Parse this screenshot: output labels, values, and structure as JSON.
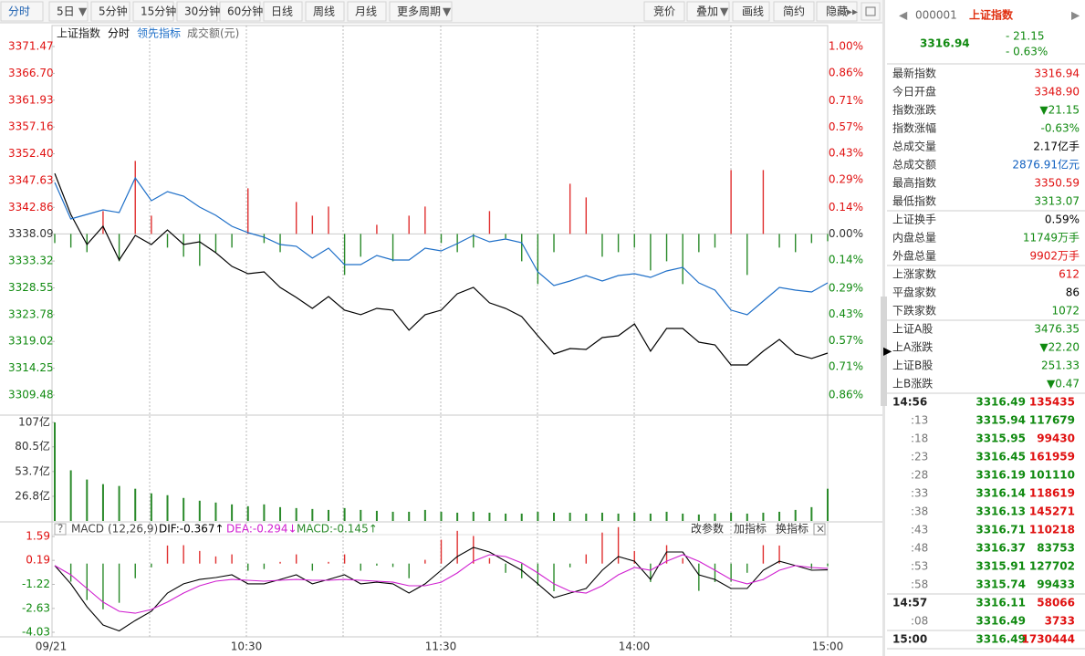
{
  "toolbar": {
    "left": [
      "分时",
      "5日",
      "5分钟",
      "15分钟",
      "30分钟",
      "60分钟",
      "日线",
      "周线",
      "月线",
      "更多周期"
    ],
    "right": [
      "竞价",
      "叠加",
      "画线",
      "简约",
      "隐藏"
    ]
  },
  "time_axis": [
    "09/21",
    "10:30",
    "11:30",
    "14:00",
    "15:00"
  ],
  "chart_data": [
    {
      "type": "line",
      "title": "上证指数",
      "volume_label": "成交额(元)",
      "ylim": [
        3309.48,
        3371.47
      ],
      "yticks": [
        3371.47,
        {
          "value": 3366.7,
          "label": "3366.70"
        },
        3361.93,
        3357.16,
        {
          "value": 3352.4,
          "label": "3352.40"
        },
        3347.63,
        3342.86,
        3338.09,
        3333.32,
        3328.55,
        3323.78,
        3319.02,
        3314.25,
        3309.48
      ],
      "y2lim": [
        -0.86,
        1.0
      ],
      "y2ticks": [
        {
          "value": 1.0,
          "label": "1.00%"
        },
        {
          "value": 0.86,
          "label": "0.86%"
        },
        {
          "value": 0.71,
          "label": "0.71%"
        },
        {
          "value": 0.57,
          "label": "0.57%"
        },
        {
          "value": 0.43,
          "label": "0.43%"
        },
        {
          "value": 0.29,
          "label": "0.29%"
        },
        {
          "value": 0.14,
          "label": "0.14%"
        },
        {
          "value": 0,
          "label": "0.00%"
        },
        {
          "value": -0.14,
          "label": "0.14%"
        },
        {
          "value": -0.29,
          "label": "0.29%"
        },
        {
          "value": -0.43,
          "label": "0.43%"
        },
        {
          "value": -0.57,
          "label": "0.57%"
        },
        {
          "value": -0.71,
          "label": "0.71%"
        },
        {
          "value": -0.86,
          "label": "0.86%"
        }
      ],
      "series": [
        {
          "name": "分时",
          "color": "#000000",
          "values": [
            3348.9,
            3341.61,
            3336.26,
            3339.5,
            3333.5,
            3337.88,
            3336.26,
            3338.86,
            3336.26,
            3336.75,
            3334.8,
            3332.37,
            3331.07,
            3331.39,
            3328.63,
            3326.85,
            3324.9,
            3327.01,
            3324.58,
            3323.77,
            3324.9,
            3324.58,
            3321.01,
            3323.77,
            3324.58,
            3327.5,
            3328.63,
            3325.88,
            3324.9,
            3323.44,
            3320.03,
            3316.79,
            3317.76,
            3317.6,
            3319.71,
            3320.03,
            3322.14,
            3317.28,
            3321.33,
            3321.33,
            3318.9,
            3318.41,
            3314.84,
            3314.84,
            3317.28,
            3319.38,
            3316.79,
            3315.98,
            3316.94
          ]
        },
        {
          "name": "领先指标",
          "color": "#1e6fc8",
          "values": [
            3347.29,
            3340.8,
            3341.61,
            3342.43,
            3341.94,
            3348.1,
            3344.05,
            3345.67,
            3344.86,
            3342.91,
            3341.45,
            3339.5,
            3338.37,
            3337.56,
            3336.26,
            3335.94,
            3333.83,
            3335.61,
            3332.69,
            3332.69,
            3334.31,
            3333.5,
            3333.5,
            3335.61,
            3335.12,
            3336.42,
            3337.88,
            3336.75,
            3337.23,
            3336.58,
            3331.39,
            3328.96,
            3329.77,
            3330.74,
            3329.77,
            3330.74,
            3331.07,
            3330.42,
            3331.55,
            3332.2,
            3329.44,
            3328.15,
            3324.58,
            3323.77,
            3326.2,
            3328.63,
            3328.15,
            3327.82,
            3329.44
          ]
        }
      ],
      "bars": {
        "up_color": "#e03030",
        "down_color": "#2a8a2a",
        "values": [
          -10,
          -15,
          -20,
          25,
          -30,
          80,
          20,
          -15,
          -25,
          -35,
          -20,
          -15,
          50,
          -10,
          -20,
          35,
          20,
          30,
          -45,
          -25,
          10,
          -30,
          20,
          30,
          -10,
          -20,
          -15,
          25,
          -5,
          -30,
          -55,
          -20,
          55,
          40,
          -25,
          -20,
          -15,
          -40,
          -30,
          -55,
          -20,
          -15,
          70,
          -45,
          70,
          -15,
          -20,
          -10,
          -8
        ]
      }
    },
    {
      "type": "bar",
      "color": "#2a8a2a",
      "ylim": [
        0,
        107
      ],
      "yticks": [
        {
          "value": 107,
          "label": "107亿"
        },
        {
          "value": 80.5,
          "label": "80.5亿"
        },
        {
          "value": 53.7,
          "label": "53.7亿"
        },
        {
          "value": 26.8,
          "label": "26.8亿"
        }
      ],
      "values": [
        107,
        55,
        45,
        40,
        38,
        35,
        30,
        28,
        25,
        22,
        20,
        18,
        16,
        18,
        15,
        14,
        13,
        12,
        14,
        12,
        11,
        10,
        10,
        12,
        10,
        9,
        10,
        9,
        8,
        8,
        10,
        9,
        9,
        8,
        9,
        8,
        9,
        8,
        10,
        8,
        7,
        8,
        9,
        8,
        9,
        10,
        12,
        15,
        35
      ]
    },
    {
      "type": "macd",
      "title": "MACD",
      "params": "(12,26,9)",
      "actions": [
        "改参数",
        "加指标",
        "换指标"
      ],
      "ylim": [
        -4.03,
        1.59
      ],
      "yticks": [
        1.59,
        0.19,
        -1.22,
        -2.63,
        -4.03
      ],
      "series": [
        {
          "name": "DIF:-0.367↑",
          "color": "#000000",
          "values": [
            -0.12,
            -1.19,
            -2.53,
            -3.6,
            -3.95,
            -3.34,
            -2.8,
            -1.73,
            -1.19,
            -0.93,
            -0.82,
            -0.66,
            -1.19,
            -1.19,
            -0.93,
            -0.66,
            -1.19,
            -0.93,
            -0.66,
            -1.19,
            -1.09,
            -1.19,
            -1.73,
            -1.19,
            -0.39,
            0.41,
            0.95,
            0.68,
            0.14,
            -0.39,
            -1.19,
            -2.0,
            -1.73,
            -1.46,
            -0.39,
            0.41,
            0.14,
            -0.93,
            0.68,
            0.68,
            -0.66,
            -0.93,
            -1.46,
            -1.46,
            -0.39,
            0.14,
            -0.12,
            -0.39,
            -0.37
          ]
        },
        {
          "name": "DEA:-0.294↓",
          "color": "#d020d0",
          "values": [
            -0.12,
            -0.66,
            -1.46,
            -2.26,
            -2.8,
            -2.91,
            -2.69,
            -2.26,
            -1.73,
            -1.3,
            -1.03,
            -0.93,
            -0.98,
            -1.03,
            -0.98,
            -0.93,
            -0.98,
            -0.98,
            -0.93,
            -0.98,
            -1.03,
            -1.09,
            -1.3,
            -1.3,
            -1.09,
            -0.55,
            0.14,
            0.52,
            0.41,
            0.04,
            -0.55,
            -1.19,
            -1.62,
            -1.73,
            -1.3,
            -0.66,
            -0.23,
            -0.39,
            0.14,
            0.52,
            0.14,
            -0.39,
            -0.93,
            -1.19,
            -0.93,
            -0.39,
            -0.12,
            -0.23,
            -0.29
          ]
        },
        {
          "name": "MACD:-0.145↑",
          "color": "#2a8a2a",
          "up_color": "#e03030",
          "values": [
            0,
            -1.06,
            -2.14,
            -2.68,
            -2.3,
            -0.86,
            -0.22,
            1.06,
            1.08,
            0.74,
            0.42,
            0.54,
            -0.42,
            -0.32,
            0.1,
            0.54,
            -0.42,
            0.1,
            0.54,
            -0.42,
            -0.12,
            -0.2,
            -0.86,
            0.22,
            1.4,
            1.92,
            1.62,
            0.32,
            -0.54,
            -0.86,
            -1.28,
            -1.62,
            -0.22,
            0.54,
            1.82,
            2.14,
            0.74,
            -1.08,
            1.08,
            0.32,
            -1.6,
            -1.08,
            -1.06,
            -0.54,
            1.08,
            1.06,
            0.0,
            -0.32,
            -0.15
          ]
        }
      ]
    }
  ],
  "quote": {
    "code": "000001",
    "name": "上证指数",
    "price": "3316.94",
    "change": "- 21.15",
    "pct": "- 0.63%",
    "groups": [
      [
        [
          "最新指数",
          "3316.94",
          "#e01010"
        ],
        [
          "今日开盘",
          "3348.90",
          "#e01010"
        ],
        [
          "指数涨跌",
          "▼21.15",
          "#108a10"
        ],
        [
          "指数涨幅",
          "-0.63%",
          "#108a10"
        ],
        [
          "总成交量",
          "2.17亿手",
          "#000000"
        ],
        [
          "总成交额",
          "2876.91亿元",
          "#1060c0"
        ],
        [
          "最高指数",
          "3350.59",
          "#e01010"
        ],
        [
          "最低指数",
          "3313.07",
          "#108a10"
        ]
      ],
      [
        [
          "上证换手",
          "0.59%",
          "#000000"
        ],
        [
          "内盘总量",
          "11749万手",
          "#108a10"
        ],
        [
          "外盘总量",
          "9902万手",
          "#e01010"
        ]
      ],
      [
        [
          "上涨家数",
          "612",
          "#e01010"
        ],
        [
          "平盘家数",
          "86",
          "#000000"
        ],
        [
          "下跌家数",
          "1072",
          "#108a10"
        ]
      ],
      [
        [
          "上证A股",
          "3476.35",
          "#108a10"
        ],
        [
          "上A涨跌",
          "▼22.20",
          "#108a10"
        ],
        [
          "上证B股",
          "251.33",
          "#108a10"
        ],
        [
          "上B涨跌",
          "▼0.47",
          "#108a10"
        ]
      ]
    ]
  },
  "ticks": [
    [
      [
        "14:56",
        "3316.49",
        "135435",
        "#e01010"
      ],
      [
        ":13",
        "3315.94",
        "117679",
        "#108a10"
      ],
      [
        ":18",
        "3315.95",
        "99430",
        "#e01010"
      ],
      [
        ":23",
        "3316.45",
        "161959",
        "#e01010"
      ],
      [
        ":28",
        "3316.19",
        "101110",
        "#108a10"
      ],
      [
        ":33",
        "3316.14",
        "118619",
        "#e01010"
      ],
      [
        ":38",
        "3316.13",
        "145271",
        "#e01010"
      ],
      [
        ":43",
        "3316.71",
        "110218",
        "#e01010"
      ],
      [
        ":48",
        "3316.37",
        "83753",
        "#108a10"
      ],
      [
        ":53",
        "3315.91",
        "127702",
        "#108a10"
      ],
      [
        ":58",
        "3315.74",
        "99433",
        "#108a10"
      ]
    ],
    [
      [
        "14:57",
        "3316.11",
        "58066",
        "#e01010"
      ],
      [
        ":08",
        "3316.49",
        "3733",
        "#e01010"
      ]
    ],
    [
      [
        "15:00",
        "3316.49",
        "1730444",
        "#e01010"
      ]
    ]
  ]
}
